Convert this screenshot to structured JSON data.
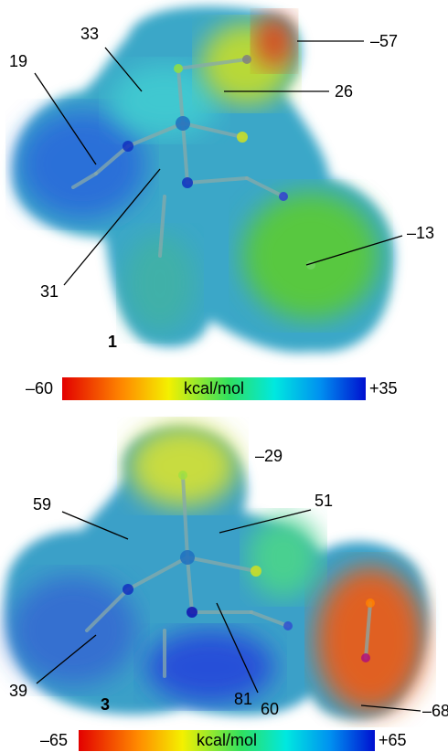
{
  "panels": [
    {
      "compound": "1",
      "annotations": [
        "33",
        "19",
        "–57",
        "26",
        "–13",
        "31"
      ],
      "colorbar": {
        "min": "–60",
        "unit": "kcal/mol",
        "max": "+35"
      }
    },
    {
      "compound": "3",
      "annotations": [
        "–29",
        "59",
        "51",
        "39",
        "81",
        "60",
        "–68"
      ],
      "colorbar": {
        "min": "–65",
        "unit": "kcal/mol",
        "max": "+65"
      }
    }
  ]
}
